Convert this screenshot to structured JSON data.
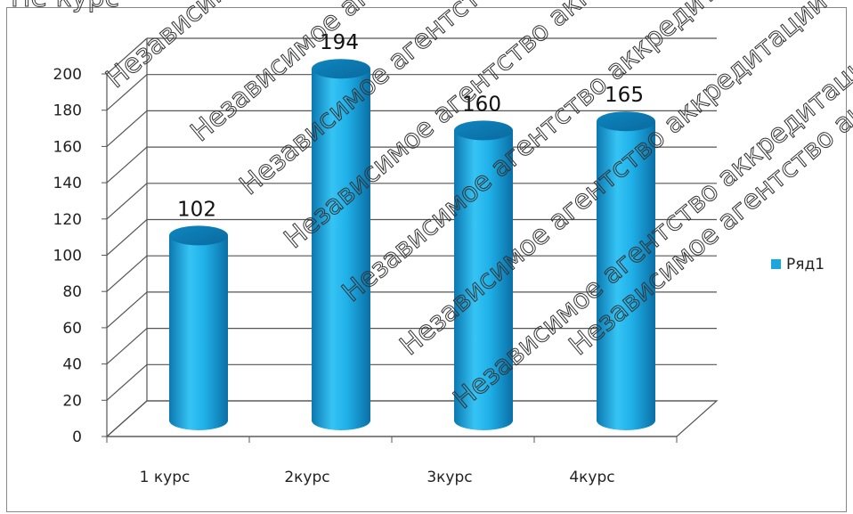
{
  "chart_data": {
    "type": "bar",
    "title": "",
    "xlabel": "",
    "ylabel": "",
    "categories": [
      "1 курс",
      "2курс",
      "3курс",
      "4курс"
    ],
    "series": [
      {
        "name": "Ряд1",
        "values": [
          102,
          194,
          160,
          165
        ],
        "color": "#1aa7e0"
      }
    ],
    "ylim": [
      0,
      200
    ],
    "y_ticks": [
      0,
      20,
      40,
      60,
      80,
      100,
      120,
      140,
      160,
      180,
      200
    ],
    "data_labels": true,
    "grid": true,
    "legend": {
      "position": "right",
      "entries": [
        "Ряд1"
      ]
    }
  },
  "watermark": {
    "text": "Независимое агентство аккредитации",
    "partial_text": "Независимо"
  },
  "top_fragment": "Не   курс"
}
